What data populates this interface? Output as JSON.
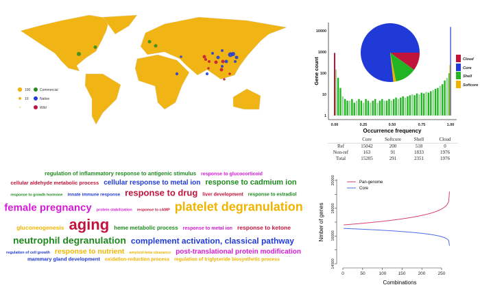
{
  "map": {
    "legend": {
      "size_labels": [
        "100",
        "10"
      ],
      "category_labels": [
        "Commercial",
        "Native",
        "Wild"
      ]
    },
    "colors": {
      "land": "#f0b414",
      "commercial": "#2a8a1e",
      "native": "#1f3ad6",
      "wild": "#c0143c"
    }
  },
  "chart_data": [
    {
      "type": "bar",
      "title": "",
      "xlabel": "Occurrence frequency",
      "ylabel": "Gene count",
      "yscale": "log",
      "ylim": [
        1,
        20000
      ],
      "xlim": [
        0,
        1
      ],
      "x_ticks": [
        "0.00",
        "0.25",
        "0.50",
        "0.75",
        "1.00"
      ],
      "y_ticks": [
        "1",
        "10",
        "100",
        "1000",
        "10000"
      ],
      "legend": [
        "Cloud",
        "Core",
        "Shell",
        "Softcore"
      ],
      "legend_position": "right",
      "colors": {
        "Cloud": "#c0143c",
        "Core": "#1f3ad6",
        "Shell": "#22b422",
        "Softcore": "#f0b400"
      },
      "edge_values": {
        "Cloud_at_0": 900,
        "Core_at_1": 15205,
        "Softcore_at_1": 250
      },
      "shell_bins": [
        150,
        60,
        20,
        8,
        6,
        5,
        5,
        6,
        4,
        5,
        6,
        5,
        4,
        6,
        5,
        4,
        5,
        6,
        4,
        5,
        6,
        5,
        5,
        6,
        5,
        6,
        7,
        6,
        7,
        8,
        7,
        8,
        9,
        10,
        9,
        11,
        10,
        12,
        11,
        13,
        12,
        14,
        16,
        18,
        20,
        25,
        30,
        45,
        60,
        100
      ],
      "pie": {
        "labels": [
          "Cloud",
          "Shell",
          "Softcore",
          "Core"
        ],
        "values": [
          1976,
          2351,
          291,
          15205
        ]
      }
    },
    {
      "type": "table",
      "columns": [
        "",
        "Core",
        "Softcore",
        "Shell",
        "Cloud"
      ],
      "rows": [
        [
          "Ref",
          "15042",
          "200",
          "518",
          "0"
        ],
        [
          "Non-ref",
          "163",
          "91",
          "1833",
          "1976"
        ],
        [
          "Total",
          "15205",
          "291",
          "2351",
          "1976"
        ]
      ]
    },
    {
      "type": "line",
      "xlabel": "Combinations",
      "ylabel": "Nmber of genes",
      "xlim": [
        0,
        270
      ],
      "ylim": [
        14000,
        20000
      ],
      "x_ticks": [
        "0",
        "50",
        "100",
        "150",
        "200",
        "250"
      ],
      "y_ticks": [
        "14000",
        "16000",
        "18000",
        "20000"
      ],
      "legend_position": "top-left",
      "series": [
        {
          "name": "Pan-genome",
          "color": "#d6406a",
          "start": 16800,
          "end": 19200
        },
        {
          "name": "Core",
          "color": "#4a6ae6",
          "start": 16550,
          "end": 15300
        }
      ]
    }
  ],
  "wordcloud": [
    "regulation of inflammatory response to antigenic stimulus",
    "response to glucocorticoid",
    "cellular aldehyde metabolic process",
    "cellular response to metal ion",
    "response to cadmium ion",
    "response to growth hormone",
    "innate immune response",
    "response to drug",
    "liver development",
    "response to estradiol",
    "female pregnancy",
    "protein stabilization",
    "response to cAMP",
    "platelet degranulation",
    "gluconeogenesis",
    "aging",
    "heme metabolic process",
    "response to metal ion",
    "response to ketone",
    "neutrophil degranulation",
    "complement activation, classical pathway",
    "regulation of cell growth",
    "response to nutrient",
    "amyloid-beta clearance",
    "post-translational protein modification",
    "mammary gland development",
    "oxidation-reduction process",
    "regulation of triglyceride biosynthetic process"
  ]
}
